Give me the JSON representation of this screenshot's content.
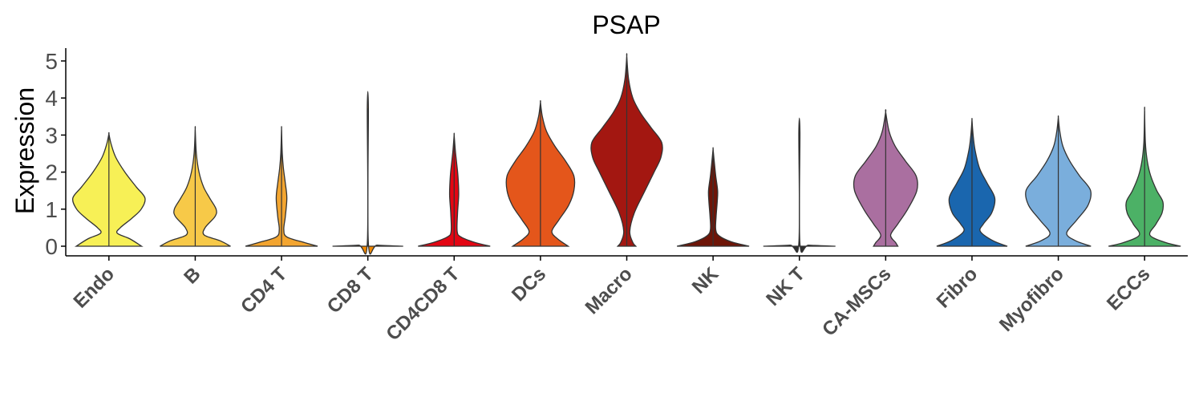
{
  "chart_data": {
    "type": "violin",
    "title": "PSAP",
    "xlabel": "",
    "ylabel": "Expression",
    "ylim": [
      -0.25,
      5.4
    ],
    "yticks": [
      "0",
      "1",
      "2",
      "3",
      "4",
      "5"
    ],
    "grid": false,
    "legend": "none",
    "categories": [
      "Endo",
      "B",
      "CD4 T",
      "CD8 T",
      "CD4CD8 T",
      "DCs",
      "Macro",
      "NK",
      "NK T",
      "CA-MSCs",
      "Fibro",
      "Myofibro",
      "ECCs"
    ],
    "colors": [
      "#F7F056",
      "#F7C948",
      "#F3A530",
      "#F18800",
      "#E30613",
      "#E4561B",
      "#A31711",
      "#6E1508",
      "#2E2E2E",
      "#AA6FA0",
      "#1A66AE",
      "#7AAEDC",
      "#4CB166"
    ],
    "violins": [
      {
        "name": "Endo",
        "max": 3.03,
        "profile": [
          [
            0,
            0.86
          ],
          [
            0.2,
            0.55
          ],
          [
            0.35,
            0.22
          ],
          [
            0.5,
            0.3
          ],
          [
            0.75,
            0.6
          ],
          [
            1.0,
            0.85
          ],
          [
            1.3,
            0.95
          ],
          [
            1.6,
            0.72
          ],
          [
            2.0,
            0.42
          ],
          [
            2.4,
            0.18
          ],
          [
            2.75,
            0.06
          ],
          [
            3.03,
            0
          ]
        ]
      },
      {
        "name": "B",
        "max": 3.15,
        "profile": [
          [
            0,
            0.93
          ],
          [
            0.15,
            0.65
          ],
          [
            0.3,
            0.24
          ],
          [
            0.5,
            0.26
          ],
          [
            0.8,
            0.52
          ],
          [
            1.0,
            0.55
          ],
          [
            1.3,
            0.38
          ],
          [
            1.6,
            0.22
          ],
          [
            2.0,
            0.1
          ],
          [
            2.5,
            0.03
          ],
          [
            3.15,
            0
          ]
        ]
      },
      {
        "name": "CD4 T",
        "max": 3.15,
        "profile": [
          [
            0,
            0.95
          ],
          [
            0.1,
            0.6
          ],
          [
            0.25,
            0.14
          ],
          [
            0.45,
            0.06
          ],
          [
            0.8,
            0.1
          ],
          [
            1.3,
            0.14
          ],
          [
            1.7,
            0.1
          ],
          [
            2.1,
            0.05
          ],
          [
            2.5,
            0.02
          ],
          [
            3.15,
            0
          ]
        ]
      },
      {
        "name": "CD8 T",
        "max": 3.72,
        "profile": [
          [
            0,
            0.93
          ],
          [
            0.03,
            0.25
          ],
          [
            0.07,
            0.015
          ],
          [
            3.72,
            0.015
          ]
        ]
      },
      {
        "name": "CD4CD8 T",
        "max": 3.0,
        "profile": [
          [
            0,
            0.95
          ],
          [
            0.1,
            0.55
          ],
          [
            0.25,
            0.18
          ],
          [
            0.4,
            0.08
          ],
          [
            0.9,
            0.09
          ],
          [
            1.4,
            0.12
          ],
          [
            1.9,
            0.1
          ],
          [
            2.3,
            0.06
          ],
          [
            2.6,
            0.03
          ],
          [
            3.0,
            0
          ]
        ]
      },
      {
        "name": "DCs",
        "max": 3.88,
        "profile": [
          [
            0,
            0.73
          ],
          [
            0.2,
            0.45
          ],
          [
            0.4,
            0.3
          ],
          [
            0.7,
            0.48
          ],
          [
            1.1,
            0.74
          ],
          [
            1.5,
            0.88
          ],
          [
            1.9,
            0.88
          ],
          [
            2.3,
            0.66
          ],
          [
            2.7,
            0.38
          ],
          [
            3.1,
            0.16
          ],
          [
            3.5,
            0.05
          ],
          [
            3.88,
            0
          ]
        ]
      },
      {
        "name": "Macro",
        "max": 5.12,
        "profile": [
          [
            0,
            0.24
          ],
          [
            0.1,
            0.16
          ],
          [
            0.4,
            0.08
          ],
          [
            0.9,
            0.2
          ],
          [
            1.5,
            0.48
          ],
          [
            2.0,
            0.72
          ],
          [
            2.4,
            0.9
          ],
          [
            2.8,
            0.92
          ],
          [
            3.2,
            0.64
          ],
          [
            3.6,
            0.36
          ],
          [
            4.0,
            0.16
          ],
          [
            4.5,
            0.05
          ],
          [
            5.12,
            0
          ]
        ]
      },
      {
        "name": "NK",
        "max": 2.62,
        "profile": [
          [
            0,
            0.95
          ],
          [
            0.12,
            0.48
          ],
          [
            0.28,
            0.16
          ],
          [
            0.45,
            0.07
          ],
          [
            0.8,
            0.08
          ],
          [
            1.2,
            0.11
          ],
          [
            1.5,
            0.12
          ],
          [
            1.9,
            0.07
          ],
          [
            2.3,
            0.03
          ],
          [
            2.62,
            0
          ]
        ]
      },
      {
        "name": "NK T",
        "max": 3.08,
        "profile": [
          [
            0,
            0.95
          ],
          [
            0.03,
            0.25
          ],
          [
            0.07,
            0.015
          ],
          [
            3.08,
            0.015
          ]
        ]
      },
      {
        "name": "CA-MSCs",
        "max": 3.62,
        "profile": [
          [
            0,
            0.32
          ],
          [
            0.1,
            0.26
          ],
          [
            0.3,
            0.13
          ],
          [
            0.6,
            0.32
          ],
          [
            1.0,
            0.58
          ],
          [
            1.5,
            0.82
          ],
          [
            1.9,
            0.8
          ],
          [
            2.3,
            0.52
          ],
          [
            2.7,
            0.25
          ],
          [
            3.1,
            0.09
          ],
          [
            3.62,
            0
          ]
        ]
      },
      {
        "name": "Fibro",
        "max": 3.4,
        "profile": [
          [
            0,
            0.93
          ],
          [
            0.15,
            0.55
          ],
          [
            0.4,
            0.22
          ],
          [
            0.6,
            0.3
          ],
          [
            0.9,
            0.52
          ],
          [
            1.3,
            0.6
          ],
          [
            1.7,
            0.4
          ],
          [
            2.1,
            0.2
          ],
          [
            2.6,
            0.08
          ],
          [
            3.0,
            0.03
          ],
          [
            3.4,
            0
          ]
        ]
      },
      {
        "name": "Myofibro",
        "max": 3.47,
        "profile": [
          [
            0,
            0.86
          ],
          [
            0.15,
            0.45
          ],
          [
            0.35,
            0.22
          ],
          [
            0.7,
            0.48
          ],
          [
            1.1,
            0.78
          ],
          [
            1.5,
            0.85
          ],
          [
            1.9,
            0.56
          ],
          [
            2.3,
            0.3
          ],
          [
            2.7,
            0.12
          ],
          [
            3.1,
            0.04
          ],
          [
            3.47,
            0
          ]
        ]
      },
      {
        "name": "ECCs",
        "max": 3.65,
        "profile": [
          [
            0,
            0.95
          ],
          [
            0.1,
            0.55
          ],
          [
            0.3,
            0.14
          ],
          [
            0.6,
            0.3
          ],
          [
            0.9,
            0.46
          ],
          [
            1.2,
            0.48
          ],
          [
            1.5,
            0.32
          ],
          [
            1.9,
            0.16
          ],
          [
            2.3,
            0.07
          ],
          [
            2.8,
            0.02
          ],
          [
            3.65,
            0
          ]
        ]
      }
    ]
  }
}
